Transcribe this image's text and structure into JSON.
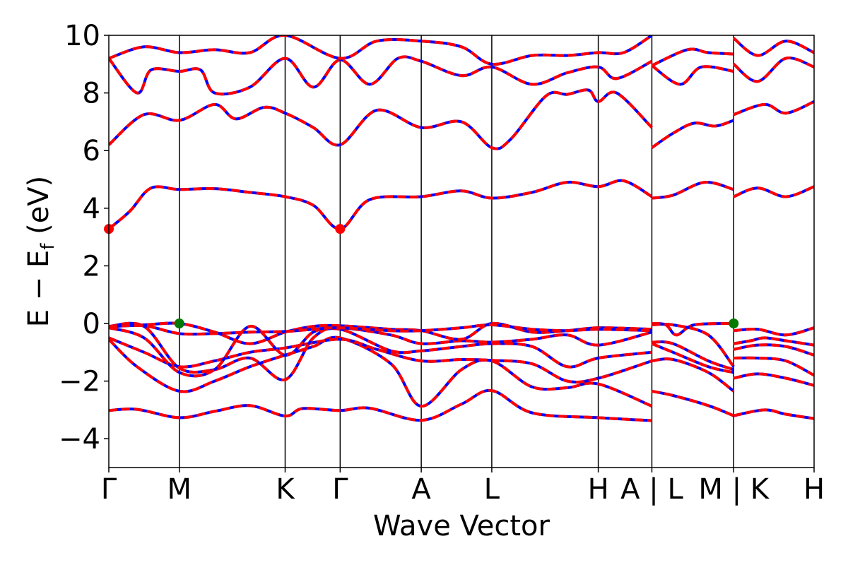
{
  "chart_data": {
    "type": "line",
    "title": "",
    "xlabel": "Wave Vector",
    "ylabel_main": "E − E",
    "ylabel_sub": "f",
    "ylabel_unit": " (eV)",
    "ylim": [
      -5,
      10
    ],
    "yticks": [
      {
        "value": 10,
        "label": "10"
      },
      {
        "value": 8,
        "label": "8"
      },
      {
        "value": 6,
        "label": "6"
      },
      {
        "value": 4,
        "label": "4"
      },
      {
        "value": 2,
        "label": "2"
      },
      {
        "value": 0,
        "label": "0"
      },
      {
        "value": -2,
        "label": "−2"
      },
      {
        "value": -4,
        "label": "−4"
      }
    ],
    "kpoints": [
      {
        "label": "Γ",
        "pos": 0.0
      },
      {
        "label": "M",
        "pos": 0.1
      },
      {
        "label": "K",
        "pos": 0.25
      },
      {
        "label": "Γ",
        "pos": 0.328
      },
      {
        "label": "A",
        "pos": 0.443
      },
      {
        "label": "L",
        "pos": 0.543
      },
      {
        "label": "H",
        "pos": 0.694
      },
      {
        "label": "A | L",
        "pos": 0.77
      },
      {
        "label": "M | K",
        "pos": 0.886
      },
      {
        "label": "H",
        "pos": 1.0
      }
    ],
    "colors": {
      "primary": "#ff0000",
      "secondary": "#0000ff",
      "vbm": "#007a00",
      "cbm": "#ff0000",
      "vline": "#000000"
    },
    "series": [
      {
        "points": [
          [
            0.0,
            -3.02
          ],
          [
            0.04,
            -2.98
          ],
          [
            0.1,
            -3.27
          ],
          [
            0.15,
            -3.05
          ],
          [
            0.2,
            -2.85
          ],
          [
            0.25,
            -3.21
          ],
          [
            0.275,
            -2.95
          ],
          [
            0.328,
            -3.02
          ],
          [
            0.37,
            -2.94
          ],
          [
            0.443,
            -3.36
          ],
          [
            0.5,
            -2.8
          ],
          [
            0.543,
            -2.33
          ],
          [
            0.6,
            -3.1
          ],
          [
            0.694,
            -3.27
          ],
          [
            0.77,
            -3.37
          ]
        ]
      },
      {
        "points": [
          [
            0.0,
            -0.55
          ],
          [
            0.04,
            -1.5
          ],
          [
            0.1,
            -2.35
          ],
          [
            0.15,
            -2.0
          ],
          [
            0.2,
            -1.5
          ],
          [
            0.25,
            -1.1
          ],
          [
            0.29,
            -0.8
          ],
          [
            0.328,
            -0.5
          ],
          [
            0.4,
            -1.4
          ],
          [
            0.443,
            -2.87
          ],
          [
            0.5,
            -1.6
          ],
          [
            0.543,
            -1.3
          ],
          [
            0.6,
            -2.2
          ],
          [
            0.65,
            -2.23
          ],
          [
            0.694,
            -2.1
          ],
          [
            0.77,
            -2.87
          ]
        ]
      },
      {
        "points": [
          [
            0.0,
            -0.5
          ],
          [
            0.05,
            -1.0
          ],
          [
            0.1,
            -1.5
          ],
          [
            0.15,
            -1.3
          ],
          [
            0.2,
            -1.0
          ],
          [
            0.25,
            -0.85
          ],
          [
            0.328,
            -0.55
          ],
          [
            0.38,
            -0.9
          ],
          [
            0.443,
            -1.3
          ],
          [
            0.5,
            -1.25
          ],
          [
            0.543,
            -1.28
          ],
          [
            0.6,
            -1.4
          ],
          [
            0.65,
            -2.0
          ],
          [
            0.694,
            -1.9
          ],
          [
            0.77,
            -1.3
          ]
        ]
      },
      {
        "points": [
          [
            0.0,
            -0.1
          ],
          [
            0.05,
            -0.1
          ],
          [
            0.1,
            -1.55
          ],
          [
            0.15,
            -1.6
          ],
          [
            0.2,
            -1.2
          ],
          [
            0.25,
            -1.95
          ],
          [
            0.29,
            -0.5
          ],
          [
            0.328,
            -0.2
          ],
          [
            0.4,
            -0.95
          ],
          [
            0.443,
            -0.95
          ],
          [
            0.5,
            -0.8
          ],
          [
            0.543,
            -0.7
          ],
          [
            0.6,
            -0.8
          ],
          [
            0.65,
            -1.5
          ],
          [
            0.694,
            -1.2
          ],
          [
            0.77,
            -1.0
          ]
        ]
      },
      {
        "points": [
          [
            0.0,
            -0.15
          ],
          [
            0.05,
            -0.5
          ],
          [
            0.1,
            -1.7
          ],
          [
            0.15,
            -1.6
          ],
          [
            0.2,
            -0.1
          ],
          [
            0.25,
            -1.1
          ],
          [
            0.29,
            -0.3
          ],
          [
            0.328,
            -0.15
          ],
          [
            0.4,
            -0.4
          ],
          [
            0.443,
            -0.7
          ],
          [
            0.5,
            -0.6
          ],
          [
            0.543,
            -0.65
          ],
          [
            0.6,
            -0.55
          ],
          [
            0.65,
            -0.4
          ],
          [
            0.694,
            -0.75
          ],
          [
            0.77,
            -0.3
          ]
        ]
      },
      {
        "points": [
          [
            0.0,
            -0.1
          ],
          [
            0.05,
            -0.05
          ],
          [
            0.1,
            0.0
          ],
          [
            0.15,
            -0.3
          ],
          [
            0.2,
            -0.7
          ],
          [
            0.25,
            -0.3
          ],
          [
            0.29,
            -0.1
          ],
          [
            0.328,
            -0.08
          ],
          [
            0.4,
            -0.2
          ],
          [
            0.443,
            -0.25
          ],
          [
            0.5,
            -0.55
          ],
          [
            0.543,
            0.0
          ],
          [
            0.6,
            -0.3
          ],
          [
            0.65,
            -0.25
          ],
          [
            0.694,
            -0.15
          ],
          [
            0.77,
            -0.2
          ]
        ]
      },
      {
        "points": [
          [
            0.0,
            -0.12
          ],
          [
            0.05,
            -0.08
          ],
          [
            0.1,
            -0.35
          ],
          [
            0.15,
            -0.35
          ],
          [
            0.2,
            -0.3
          ],
          [
            0.25,
            -0.28
          ],
          [
            0.29,
            -0.2
          ],
          [
            0.328,
            -0.15
          ],
          [
            0.4,
            -0.25
          ],
          [
            0.443,
            -0.25
          ],
          [
            0.5,
            -0.15
          ],
          [
            0.543,
            -0.05
          ],
          [
            0.6,
            -0.2
          ],
          [
            0.65,
            -0.25
          ],
          [
            0.694,
            -0.2
          ],
          [
            0.77,
            -0.25
          ]
        ]
      },
      {
        "points": [
          [
            0.0,
            3.28
          ],
          [
            0.03,
            3.9
          ],
          [
            0.06,
            4.7
          ],
          [
            0.1,
            4.65
          ],
          [
            0.15,
            4.68
          ],
          [
            0.2,
            4.55
          ],
          [
            0.25,
            4.4
          ],
          [
            0.29,
            4.1
          ],
          [
            0.328,
            3.28
          ],
          [
            0.37,
            4.3
          ],
          [
            0.443,
            4.4
          ],
          [
            0.5,
            4.6
          ],
          [
            0.543,
            4.35
          ],
          [
            0.6,
            4.55
          ],
          [
            0.65,
            4.9
          ],
          [
            0.694,
            4.75
          ],
          [
            0.73,
            4.95
          ],
          [
            0.77,
            4.4
          ]
        ]
      },
      {
        "points": [
          [
            0.0,
            6.2
          ],
          [
            0.05,
            7.25
          ],
          [
            0.1,
            7.05
          ],
          [
            0.15,
            7.6
          ],
          [
            0.18,
            7.1
          ],
          [
            0.22,
            7.5
          ],
          [
            0.25,
            7.3
          ],
          [
            0.29,
            6.8
          ],
          [
            0.328,
            6.2
          ],
          [
            0.38,
            7.4
          ],
          [
            0.443,
            6.8
          ],
          [
            0.5,
            7.0
          ],
          [
            0.543,
            6.1
          ],
          [
            0.57,
            6.4
          ],
          [
            0.62,
            7.9
          ],
          [
            0.65,
            7.95
          ],
          [
            0.68,
            8.1
          ],
          [
            0.694,
            7.7
          ],
          [
            0.72,
            8.0
          ],
          [
            0.77,
            6.8
          ]
        ]
      },
      {
        "points": [
          [
            0.0,
            9.2
          ],
          [
            0.04,
            8.0
          ],
          [
            0.06,
            8.8
          ],
          [
            0.1,
            8.75
          ],
          [
            0.13,
            8.8
          ],
          [
            0.15,
            8.0
          ],
          [
            0.2,
            8.2
          ],
          [
            0.25,
            9.2
          ],
          [
            0.29,
            8.2
          ],
          [
            0.328,
            9.15
          ],
          [
            0.37,
            8.3
          ],
          [
            0.41,
            9.2
          ],
          [
            0.443,
            9.1
          ],
          [
            0.5,
            8.6
          ],
          [
            0.543,
            8.9
          ],
          [
            0.6,
            8.3
          ],
          [
            0.65,
            8.7
          ],
          [
            0.694,
            8.9
          ],
          [
            0.72,
            8.5
          ],
          [
            0.77,
            9.1
          ]
        ]
      },
      {
        "points": [
          [
            0.0,
            9.2
          ],
          [
            0.05,
            9.6
          ],
          [
            0.1,
            9.4
          ],
          [
            0.15,
            9.5
          ],
          [
            0.2,
            9.4
          ],
          [
            0.25,
            10.0
          ],
          [
            0.328,
            9.2
          ],
          [
            0.38,
            9.8
          ],
          [
            0.443,
            9.8
          ],
          [
            0.5,
            9.6
          ],
          [
            0.543,
            9.0
          ],
          [
            0.6,
            9.3
          ],
          [
            0.65,
            9.3
          ],
          [
            0.694,
            9.4
          ],
          [
            0.73,
            9.4
          ],
          [
            0.77,
            10.0
          ]
        ]
      },
      {
        "points": [
          [
            0.77,
            6.1
          ],
          [
            0.8,
            6.6
          ],
          [
            0.83,
            6.95
          ],
          [
            0.86,
            6.85
          ],
          [
            0.886,
            7.05
          ]
        ]
      },
      {
        "points": [
          [
            0.77,
            4.35
          ],
          [
            0.8,
            4.45
          ],
          [
            0.845,
            4.9
          ],
          [
            0.886,
            4.65
          ]
        ]
      },
      {
        "points": [
          [
            0.77,
            0.0
          ],
          [
            0.79,
            -0.05
          ],
          [
            0.805,
            -0.4
          ],
          [
            0.83,
            -0.05
          ],
          [
            0.886,
            0.0
          ]
        ]
      },
      {
        "points": [
          [
            0.77,
            -0.05
          ],
          [
            0.8,
            -0.05
          ],
          [
            0.85,
            -0.4
          ],
          [
            0.886,
            -1.5
          ]
        ]
      },
      {
        "points": [
          [
            0.77,
            -0.65
          ],
          [
            0.8,
            -0.7
          ],
          [
            0.85,
            -1.3
          ],
          [
            0.886,
            -1.6
          ]
        ]
      },
      {
        "points": [
          [
            0.77,
            -0.7
          ],
          [
            0.8,
            -1.0
          ],
          [
            0.85,
            -1.5
          ],
          [
            0.886,
            -1.7
          ]
        ]
      },
      {
        "points": [
          [
            0.77,
            -1.3
          ],
          [
            0.8,
            -1.25
          ],
          [
            0.85,
            -1.7
          ],
          [
            0.886,
            -2.35
          ]
        ]
      },
      {
        "points": [
          [
            0.77,
            -2.35
          ],
          [
            0.8,
            -2.5
          ],
          [
            0.85,
            -2.85
          ],
          [
            0.886,
            -3.2
          ]
        ]
      },
      {
        "points": [
          [
            0.77,
            8.95
          ],
          [
            0.81,
            8.3
          ],
          [
            0.84,
            8.9
          ],
          [
            0.886,
            8.75
          ]
        ]
      },
      {
        "points": [
          [
            0.77,
            8.95
          ],
          [
            0.82,
            9.5
          ],
          [
            0.85,
            9.4
          ],
          [
            0.886,
            9.35
          ]
        ]
      },
      {
        "points": [
          [
            0.886,
            7.25
          ],
          [
            0.93,
            7.6
          ],
          [
            0.96,
            7.3
          ],
          [
            1.0,
            7.7
          ]
        ]
      },
      {
        "points": [
          [
            0.886,
            4.4
          ],
          [
            0.92,
            4.7
          ],
          [
            0.96,
            4.4
          ],
          [
            1.0,
            4.75
          ]
        ]
      },
      {
        "points": [
          [
            0.886,
            -0.25
          ],
          [
            0.92,
            -0.2
          ],
          [
            0.96,
            -0.4
          ],
          [
            1.0,
            -0.15
          ]
        ]
      },
      {
        "points": [
          [
            0.886,
            -0.7
          ],
          [
            0.91,
            -0.6
          ],
          [
            0.93,
            -0.5
          ],
          [
            0.96,
            -0.6
          ],
          [
            1.0,
            -0.75
          ]
        ]
      },
      {
        "points": [
          [
            0.886,
            -0.9
          ],
          [
            0.92,
            -0.75
          ],
          [
            0.96,
            -0.8
          ],
          [
            1.0,
            -1.1
          ]
        ]
      },
      {
        "points": [
          [
            0.886,
            -1.2
          ],
          [
            0.92,
            -1.2
          ],
          [
            0.96,
            -1.3
          ],
          [
            1.0,
            -1.8
          ]
        ]
      },
      {
        "points": [
          [
            0.886,
            -1.9
          ],
          [
            0.92,
            -1.75
          ],
          [
            0.96,
            -1.9
          ],
          [
            1.0,
            -2.15
          ]
        ]
      },
      {
        "points": [
          [
            0.886,
            -3.2
          ],
          [
            0.93,
            -3.0
          ],
          [
            0.96,
            -3.15
          ],
          [
            1.0,
            -3.3
          ]
        ]
      },
      {
        "points": [
          [
            0.886,
            9.0
          ],
          [
            0.92,
            8.4
          ],
          [
            0.96,
            9.2
          ],
          [
            1.0,
            8.9
          ]
        ]
      },
      {
        "points": [
          [
            0.886,
            9.9
          ],
          [
            0.92,
            9.3
          ],
          [
            0.96,
            9.8
          ],
          [
            1.0,
            9.4
          ]
        ]
      }
    ],
    "markers": [
      {
        "x": 0.0,
        "y": 3.28,
        "kind": "cbm"
      },
      {
        "x": 0.328,
        "y": 3.28,
        "kind": "cbm"
      },
      {
        "x": 0.1,
        "y": 0.0,
        "kind": "vbm"
      },
      {
        "x": 0.886,
        "y": 0.0,
        "kind": "vbm"
      }
    ]
  }
}
